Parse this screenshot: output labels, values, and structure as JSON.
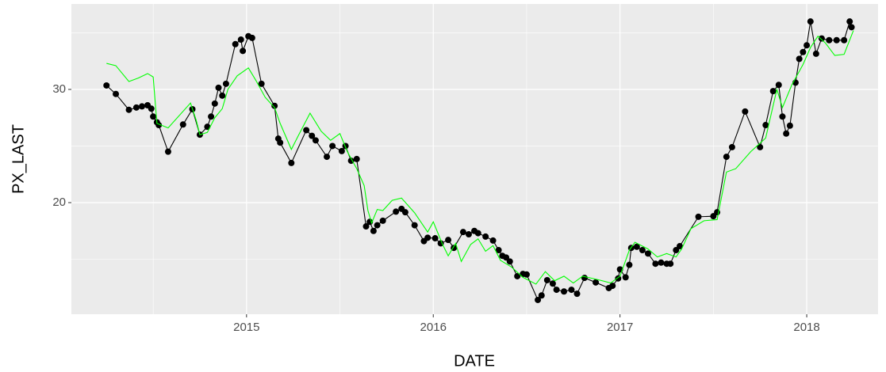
{
  "chart_data": {
    "type": "line",
    "x_label": "DATE",
    "y_label": "PX_LAST",
    "xlim": [
      2014.062,
      2018.382
    ],
    "ylim": [
      10.14,
      37.55
    ],
    "xticks": [
      2015,
      2016,
      2017,
      2018
    ],
    "yticks": [
      20,
      30
    ],
    "xminor": [
      2014.5,
      2015.5,
      2016.5,
      2017.5
    ],
    "yminor": [
      15,
      25,
      35
    ],
    "grid": true,
    "series": [
      {
        "color": "#000000",
        "markers": true,
        "x": [
          2014.25,
          2014.3,
          2014.37,
          2014.41,
          2014.44,
          2014.47,
          2014.49,
          2014.5,
          2014.52,
          2014.53,
          2014.58,
          2014.66,
          2014.71,
          2014.75,
          2014.79,
          2014.81,
          2014.83,
          2014.85,
          2014.87,
          2014.89,
          2014.94,
          2014.97,
          2014.98,
          2015.01,
          2015.03,
          2015.08,
          2015.15,
          2015.17,
          2015.18,
          2015.24,
          2015.32,
          2015.35,
          2015.37,
          2015.43,
          2015.46,
          2015.51,
          2015.53,
          2015.56,
          2015.59,
          2015.64,
          2015.66,
          2015.68,
          2015.7,
          2015.73,
          2015.8,
          2015.83,
          2015.85,
          2015.9,
          2015.95,
          2015.97,
          2016.01,
          2016.04,
          2016.08,
          2016.11,
          2016.16,
          2016.19,
          2016.22,
          2016.24,
          2016.28,
          2016.32,
          2016.35,
          2016.37,
          2016.39,
          2016.41,
          2016.45,
          2016.48,
          2016.5,
          2016.56,
          2016.58,
          2016.61,
          2016.64,
          2016.66,
          2016.7,
          2016.74,
          2016.77,
          2016.81,
          2016.87,
          2016.94,
          2016.96,
          2016.99,
          2017.0,
          2017.03,
          2017.05,
          2017.06,
          2017.09,
          2017.12,
          2017.15,
          2017.19,
          2017.22,
          2017.25,
          2017.27,
          2017.3,
          2017.32,
          2017.42,
          2017.5,
          2017.52,
          2017.57,
          2017.6,
          2017.67,
          2017.75,
          2017.78,
          2017.82,
          2017.85,
          2017.87,
          2017.89,
          2017.91,
          2017.94,
          2017.96,
          2017.98,
          2018.0,
          2018.02,
          2018.05,
          2018.08,
          2018.12,
          2018.16,
          2018.2,
          2018.23,
          2018.24
        ],
        "values": [
          30.35,
          29.6,
          28.2,
          28.4,
          28.5,
          28.6,
          28.3,
          27.6,
          27.1,
          26.85,
          24.5,
          26.9,
          28.25,
          26.0,
          26.7,
          27.6,
          28.75,
          30.15,
          29.45,
          30.5,
          34.0,
          34.4,
          33.4,
          34.7,
          34.55,
          30.5,
          28.55,
          25.65,
          25.3,
          23.5,
          26.4,
          25.9,
          25.5,
          24.05,
          25.0,
          24.55,
          25.0,
          23.7,
          23.85,
          17.9,
          18.3,
          17.5,
          18.0,
          18.4,
          19.2,
          19.45,
          19.15,
          18.0,
          16.6,
          16.9,
          16.85,
          16.4,
          16.7,
          16.0,
          17.4,
          17.2,
          17.5,
          17.3,
          17.0,
          16.65,
          15.8,
          15.3,
          15.15,
          14.8,
          13.5,
          13.7,
          13.65,
          11.4,
          11.8,
          13.15,
          12.85,
          12.3,
          12.15,
          12.3,
          11.95,
          13.35,
          12.95,
          12.45,
          12.65,
          13.3,
          14.1,
          13.4,
          14.5,
          16.0,
          16.1,
          15.8,
          15.5,
          14.6,
          14.7,
          14.6,
          14.6,
          15.8,
          16.15,
          18.75,
          18.8,
          19.15,
          24.05,
          24.9,
          28.05,
          24.9,
          26.85,
          29.85,
          30.4,
          27.6,
          26.1,
          26.8,
          30.6,
          32.7,
          33.3,
          33.9,
          36.0,
          33.15,
          34.5,
          34.35,
          34.35,
          34.35,
          36.0,
          35.5
        ]
      },
      {
        "color": "#00ff00",
        "markers": false,
        "x": [
          2014.25,
          2014.3,
          2014.37,
          2014.42,
          2014.47,
          2014.5,
          2014.52,
          2014.58,
          2014.7,
          2014.73,
          2014.75,
          2014.79,
          2014.83,
          2014.87,
          2014.9,
          2014.95,
          2015.01,
          2015.05,
          2015.1,
          2015.15,
          2015.18,
          2015.24,
          2015.28,
          2015.34,
          2015.4,
          2015.45,
          2015.5,
          2015.54,
          2015.59,
          2015.63,
          2015.65,
          2015.67,
          2015.7,
          2015.73,
          2015.78,
          2015.83,
          2015.9,
          2015.97,
          2016.0,
          2016.05,
          2016.08,
          2016.12,
          2016.15,
          2016.2,
          2016.24,
          2016.28,
          2016.32,
          2016.36,
          2016.42,
          2016.48,
          2016.55,
          2016.6,
          2016.65,
          2016.7,
          2016.75,
          2016.8,
          2016.88,
          2016.95,
          2017.0,
          2017.05,
          2017.08,
          2017.15,
          2017.2,
          2017.25,
          2017.3,
          2017.33,
          2017.38,
          2017.45,
          2017.52,
          2017.57,
          2017.62,
          2017.7,
          2017.78,
          2017.84,
          2017.87,
          2017.92,
          2017.98,
          2018.02,
          2018.06,
          2018.1,
          2018.15,
          2018.2,
          2018.25
        ],
        "values": [
          32.3,
          32.1,
          30.7,
          31.0,
          31.4,
          31.1,
          27.0,
          26.6,
          28.8,
          27.3,
          26.0,
          26.2,
          27.5,
          28.3,
          30.0,
          31.2,
          31.9,
          30.8,
          29.3,
          28.4,
          27.0,
          24.7,
          26.0,
          27.9,
          26.3,
          25.5,
          26.1,
          24.5,
          23.0,
          21.5,
          19.3,
          18.2,
          19.4,
          19.3,
          20.2,
          20.4,
          19.1,
          17.4,
          18.3,
          16.3,
          15.3,
          16.4,
          14.8,
          16.3,
          16.8,
          15.7,
          16.2,
          14.9,
          14.3,
          13.4,
          12.8,
          13.9,
          13.1,
          13.5,
          12.9,
          13.5,
          13.2,
          12.9,
          13.5,
          15.8,
          16.5,
          15.9,
          15.2,
          15.5,
          15.2,
          15.9,
          17.7,
          18.4,
          18.5,
          22.7,
          23.0,
          24.5,
          25.7,
          30.0,
          28.4,
          30.4,
          32.2,
          33.7,
          34.7,
          34.1,
          33.0,
          33.1,
          35.2
        ]
      }
    ]
  }
}
